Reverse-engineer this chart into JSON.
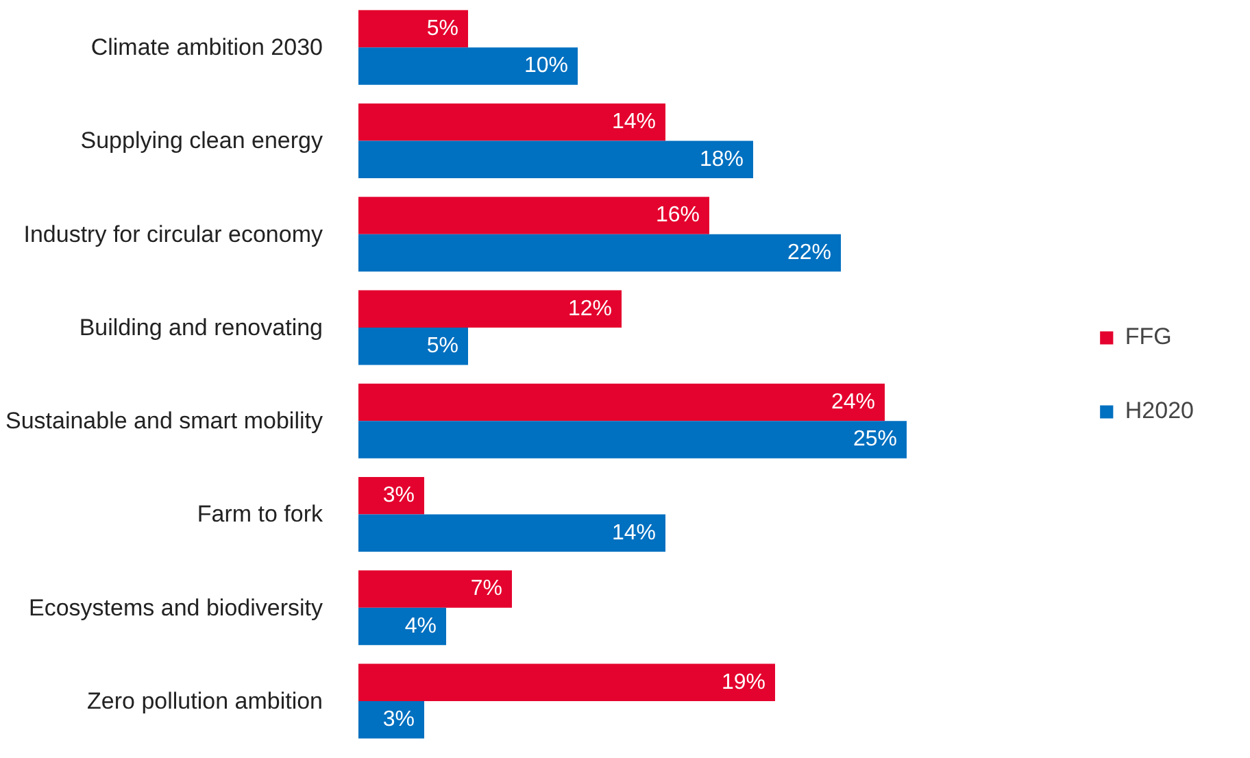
{
  "chart_data": {
    "type": "bar",
    "orientation": "horizontal",
    "categories": [
      "Climate ambition 2030",
      "Supplying clean energy",
      "Industry for circular economy",
      "Building and renovating",
      "Sustainable and smart mobility",
      "Farm to fork",
      "Ecosystems and biodiversity",
      "Zero pollution ambition"
    ],
    "series": [
      {
        "name": "FFG",
        "color": "#e4032e",
        "values": [
          5,
          14,
          16,
          12,
          24,
          3,
          7,
          19
        ],
        "value_labels": [
          "5%",
          "14%",
          "16%",
          "12%",
          "24%",
          "3%",
          "7%",
          "19%"
        ]
      },
      {
        "name": "H2020",
        "color": "#0070c0",
        "values": [
          10,
          18,
          22,
          5,
          25,
          14,
          4,
          3
        ],
        "value_labels": [
          "10%",
          "18%",
          "22%",
          "5%",
          "25%",
          "14%",
          "4%",
          "3%"
        ]
      }
    ],
    "legend": "right",
    "grid": false
  }
}
